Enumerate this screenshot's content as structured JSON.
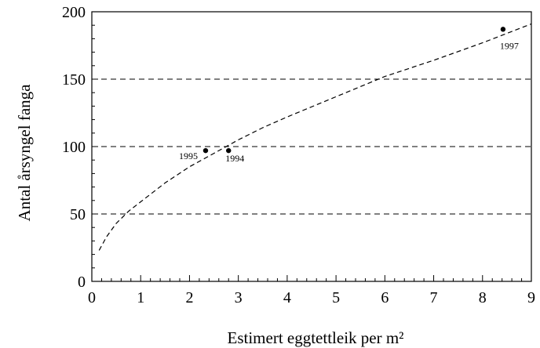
{
  "chart_data": {
    "type": "scatter",
    "xlabel": "Estimert eggtettleik per m²",
    "ylabel": "Antal årsyngel fanga",
    "xlim": [
      0,
      9
    ],
    "ylim": [
      0,
      200
    ],
    "x_ticks": [
      0,
      1,
      2,
      3,
      4,
      5,
      6,
      7,
      8,
      9
    ],
    "y_ticks": [
      0,
      50,
      100,
      150,
      200
    ],
    "x_minor_step": 0.2,
    "y_minor_step": 10,
    "gridlines_y": [
      50,
      100,
      150
    ],
    "grid_style": "dashed horizontal",
    "points": [
      {
        "x": 2.33,
        "y": 97,
        "label": "1995",
        "label_side": "left-below"
      },
      {
        "x": 2.8,
        "y": 97,
        "label": "1994",
        "label_side": "right-below"
      },
      {
        "x": 8.42,
        "y": 187,
        "label": "1997",
        "label_side": "below"
      }
    ],
    "trend_curve": {
      "style": "dashed",
      "x": [
        0.15,
        0.3,
        0.5,
        0.75,
        1,
        1.5,
        2,
        2.5,
        3,
        3.5,
        4,
        5,
        6,
        7,
        8,
        9
      ],
      "y": [
        23,
        33,
        43,
        52,
        59,
        73,
        85,
        95,
        105,
        114,
        122,
        137,
        152,
        164,
        177,
        191
      ]
    }
  }
}
